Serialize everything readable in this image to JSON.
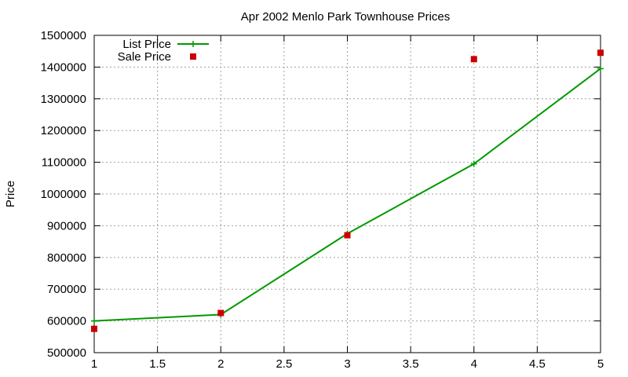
{
  "chart_data": {
    "type": "line",
    "title": "Apr 2002 Menlo Park Townhouse Prices",
    "xlabel": "",
    "ylabel": "Price",
    "xlim": [
      1,
      5
    ],
    "ylim": [
      500000,
      1500000
    ],
    "x_ticks": [
      1,
      1.5,
      2,
      2.5,
      3,
      3.5,
      4,
      4.5,
      5
    ],
    "x_tick_labels": [
      "1",
      "1.5",
      "2",
      "2.5",
      "3",
      "3.5",
      "4",
      "4.5",
      "5"
    ],
    "y_ticks": [
      500000,
      600000,
      700000,
      800000,
      900000,
      1000000,
      1100000,
      1200000,
      1300000,
      1400000,
      1500000
    ],
    "y_tick_labels": [
      "500000",
      "600000",
      "700000",
      "800000",
      "900000",
      "1000000",
      "1100000",
      "1200000",
      "1300000",
      "1400000",
      "1500000"
    ],
    "grid": true,
    "legend_position": "top-left",
    "series": [
      {
        "name": "List Price",
        "style": "line-points",
        "marker": "plus",
        "color": "#009900",
        "x": [
          1,
          2,
          3,
          4,
          5
        ],
        "y": [
          600000,
          620000,
          875000,
          1095000,
          1395000
        ]
      },
      {
        "name": "Sale Price",
        "style": "points",
        "marker": "square",
        "color": "#cc0000",
        "x": [
          1,
          2,
          3,
          4,
          5
        ],
        "y": [
          575000,
          625000,
          870000,
          1425000,
          1445000
        ]
      }
    ]
  }
}
